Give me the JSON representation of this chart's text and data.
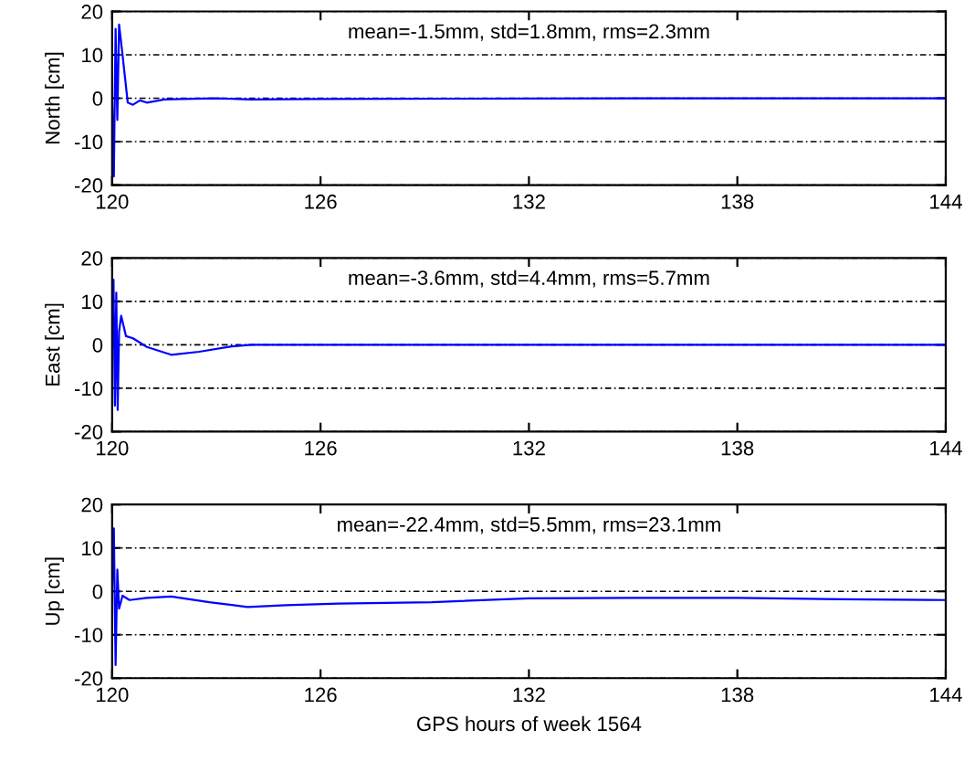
{
  "chart_data": [
    {
      "type": "line",
      "ylabel": "North [cm]",
      "annotations": [
        "mean=-1.5mm, std=1.8mm, rms=2.3mm"
      ],
      "xlim": [
        120,
        144
      ],
      "xticks": [
        120,
        126,
        132,
        138,
        144
      ],
      "ylim": [
        -20,
        20
      ],
      "yticks": [
        -20,
        -10,
        0,
        10,
        20
      ],
      "grid": "y",
      "legend": false,
      "series": [
        {
          "color": "#0000ff",
          "x": [
            120,
            120.05,
            120.1,
            120.15,
            120.2,
            120.3,
            120.45,
            120.6,
            120.8,
            121.0,
            121.5,
            122,
            123,
            124,
            126,
            130,
            135,
            140,
            144
          ],
          "values": [
            0,
            -18,
            16,
            -5,
            17,
            10,
            -1,
            -1.5,
            -0.5,
            -1,
            -0.3,
            -0.2,
            0,
            -0.3,
            -0.2,
            -0.1,
            0,
            0,
            0
          ]
        }
      ]
    },
    {
      "type": "line",
      "ylabel": "East [cm]",
      "annotations": [
        "mean=-3.6mm, std=4.4mm, rms=5.7mm"
      ],
      "xlim": [
        120,
        144
      ],
      "xticks": [
        120,
        126,
        132,
        138,
        144
      ],
      "ylim": [
        -20,
        20
      ],
      "yticks": [
        -20,
        -10,
        0,
        10,
        20
      ],
      "grid": "y",
      "legend": false,
      "series": [
        {
          "color": "#0000ff",
          "x": [
            120,
            120.04,
            120.08,
            120.12,
            120.16,
            120.2,
            120.26,
            120.4,
            120.6,
            121.0,
            121.7,
            122.5,
            123.4,
            124,
            126,
            130,
            135,
            140,
            144
          ],
          "values": [
            0,
            15,
            -14,
            12,
            -15,
            3,
            6.7,
            2,
            1.5,
            -0.5,
            -2.3,
            -1.6,
            -0.4,
            0,
            0,
            0,
            0,
            0,
            0
          ]
        }
      ]
    },
    {
      "type": "line",
      "ylabel": "Up [cm]",
      "xlabel": "GPS hours of week 1564",
      "annotations": [
        "mean=-22.4mm, std=5.5mm, rms=23.1mm"
      ],
      "xlim": [
        120,
        144
      ],
      "xticks": [
        120,
        126,
        132,
        138,
        144
      ],
      "ylim": [
        -20,
        20
      ],
      "yticks": [
        -20,
        -10,
        0,
        10,
        20
      ],
      "grid": "y",
      "legend": false,
      "series": [
        {
          "color": "#0000ff",
          "x": [
            120,
            120.05,
            120.1,
            120.15,
            120.2,
            120.3,
            120.5,
            121.0,
            121.7,
            122.8,
            123.9,
            125,
            126.5,
            129.2,
            132,
            135,
            138,
            141,
            144
          ],
          "values": [
            0,
            14.5,
            -17,
            5,
            -4,
            -1,
            -2,
            -1.5,
            -1.2,
            -2.5,
            -3.6,
            -3.2,
            -2.8,
            -2.5,
            -1.6,
            -1.5,
            -1.5,
            -1.8,
            -2
          ]
        }
      ]
    }
  ]
}
